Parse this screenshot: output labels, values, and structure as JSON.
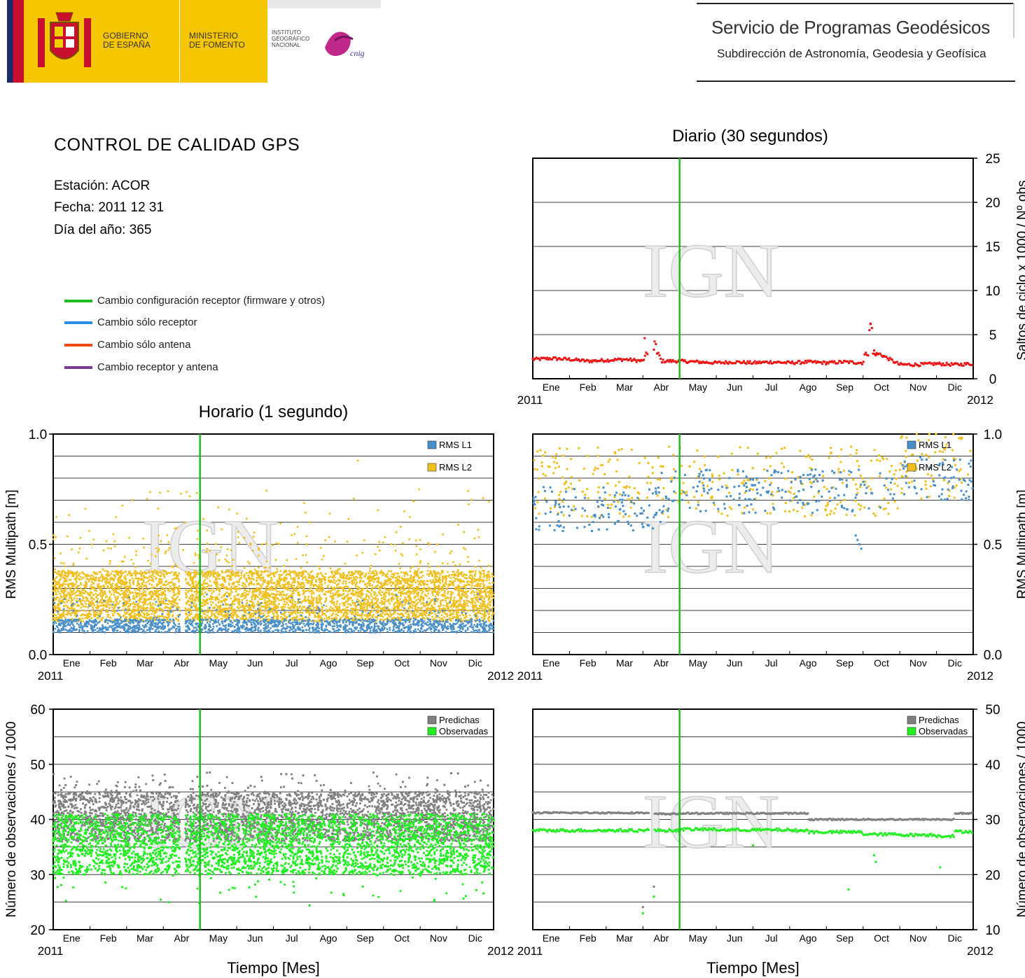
{
  "header": {
    "gov_label_1": "GOBIERNO",
    "gov_label_2": "DE ESPAÑA",
    "ministry_1": "MINISTERIO",
    "ministry_2": "DE FOMENTO",
    "ign_1": "INSTITUTO",
    "ign_2": "GEOGRÁFICO",
    "ign_3": "NACIONAL",
    "cnig_logo": "cnig",
    "service_title": "Servicio de Programas Geodésicos",
    "service_subtitle": "Subdirección de Astronomía, Geodesia y Geofísica"
  },
  "report": {
    "title": "CONTROL DE CALIDAD GPS",
    "station": "Estación: ACOR",
    "date": "Fecha: 2011 12 31",
    "doy": "Día del año: 365"
  },
  "legend": [
    {
      "label": "Cambio configuración receptor (firmware y otros)",
      "color": "#22bb22"
    },
    {
      "label": "Cambio sólo receptor",
      "color": "#2a8fe0"
    },
    {
      "label": "Cambio sólo antena",
      "color": "#f04a10"
    },
    {
      "label": "Cambio receptor y antena",
      "color": "#7a3a9a"
    }
  ],
  "colors": {
    "rms_l1": "#4a90c8",
    "rms_l2": "#f0c020",
    "predichas": "#808080",
    "observadas": "#22ee22",
    "cycle_slips": "#ee1111",
    "change_marker": "#22bb22"
  },
  "watermark": "IGN",
  "chart_data": [
    {
      "id": "daily_slips",
      "type": "scatter",
      "title": "Diario (30 segundos)",
      "ylabel": "Saltos de ciclo x 1000 / Nº obs.",
      "xlabel": "",
      "x_start": "2011",
      "x_end": "2012",
      "months": [
        "Ene",
        "Feb",
        "Mar",
        "Abr",
        "May",
        "Jun",
        "Jul",
        "Ago",
        "Sep",
        "Oct",
        "Nov",
        "Dic"
      ],
      "ylim": [
        0,
        25
      ],
      "yticks": [
        0,
        5,
        10,
        15,
        20,
        25
      ],
      "change_marker_month": 4.0,
      "series": [
        {
          "name": "",
          "base": 2.0,
          "x": [
            0.0,
            0.5,
            1.0,
            1.5,
            2.0,
            2.5,
            3.0,
            3.3,
            3.5,
            4.0,
            4.5,
            5.0,
            5.5,
            6.0,
            6.5,
            7.0,
            7.5,
            8.0,
            8.5,
            9.0,
            9.2,
            9.5,
            10.0,
            10.5,
            11.0,
            11.5,
            12.0
          ],
          "y": [
            2.2,
            2.3,
            2.2,
            2.0,
            2.1,
            2.2,
            2.0,
            4.6,
            2.0,
            2.0,
            1.9,
            1.8,
            1.9,
            1.8,
            1.9,
            1.8,
            1.9,
            1.8,
            1.9,
            1.8,
            6.2,
            2.7,
            1.6,
            1.6,
            1.7,
            1.6,
            1.7
          ]
        }
      ]
    },
    {
      "id": "hourly_rms",
      "type": "scatter",
      "title": "Horario (1 segundo)",
      "ylabel": "RMS Multipath [m]",
      "x_start": "2011",
      "x_end": "2012",
      "months": [
        "Ene",
        "Feb",
        "Mar",
        "Abr",
        "May",
        "Jun",
        "Jul",
        "Ago",
        "Sep",
        "Oct",
        "Nov",
        "Dic"
      ],
      "ylim": [
        0.0,
        1.0
      ],
      "ytick_labels": [
        "0.0",
        "0.5",
        "1.0"
      ],
      "change_marker_month": 4.0,
      "series": [
        {
          "name": "RMS L1",
          "band": [
            0.1,
            0.3
          ]
        },
        {
          "name": "RMS L2",
          "band": [
            0.15,
            0.38
          ],
          "outliers_max": 0.88
        }
      ]
    },
    {
      "id": "daily_rms",
      "type": "scatter",
      "title": "",
      "ylabel": "RMS Multipath [m]",
      "x_start": "2011",
      "x_end": "2012",
      "months": [
        "Ene",
        "Feb",
        "Mar",
        "Abr",
        "May",
        "Jun",
        "Jul",
        "Ago",
        "Sep",
        "Oct",
        "Nov",
        "Dic"
      ],
      "ylim": [
        0.0,
        1.0
      ],
      "ytick_labels": [
        "0.0",
        "0.5",
        "1.0"
      ],
      "change_marker_month": 4.0,
      "series": [
        {
          "name": "RMS L1",
          "band": [
            0.6,
            0.9
          ]
        },
        {
          "name": "RMS L2",
          "band": [
            0.68,
            1.0
          ]
        }
      ]
    },
    {
      "id": "hourly_obs",
      "type": "scatter",
      "ylabel": "Número de observaciones / 1000",
      "xlabel": "Tiempo [Mes]",
      "x_start": "2011",
      "x_end": "2012",
      "months": [
        "Ene",
        "Feb",
        "Mar",
        "Abr",
        "May",
        "Jun",
        "Jul",
        "Ago",
        "Sep",
        "Oct",
        "Nov",
        "Dic"
      ],
      "ylim": [
        20,
        60
      ],
      "yticks": [
        20,
        30,
        40,
        50,
        60
      ],
      "change_marker_month": 4.0,
      "series": [
        {
          "name": "Predichas",
          "band": [
            33,
            49
          ]
        },
        {
          "name": "Observadas",
          "band": [
            29,
            42
          ]
        }
      ]
    },
    {
      "id": "daily_obs",
      "type": "scatter",
      "ylabel": "Número de observaciones / 1000",
      "xlabel": "Tiempo [Mes]",
      "x_start": "2011",
      "x_end": "2012",
      "months": [
        "Ene",
        "Feb",
        "Mar",
        "Abr",
        "May",
        "Jun",
        "Jul",
        "Ago",
        "Sep",
        "Oct",
        "Nov",
        "Dic"
      ],
      "ylim": [
        10,
        50
      ],
      "yticks": [
        10,
        20,
        30,
        40,
        50
      ],
      "change_marker_month": 4.0,
      "series": [
        {
          "name": "Predichas",
          "x": [
            0,
            1,
            2,
            3,
            3.3,
            4,
            5,
            6,
            7,
            7.5,
            8,
            9,
            10,
            11,
            11.5
          ],
          "y": [
            31.2,
            31.2,
            31.2,
            31.1,
            31.0,
            31.1,
            31.1,
            31.1,
            31.1,
            30.0,
            30.0,
            30.0,
            30.0,
            30.0,
            31.1
          ]
        },
        {
          "name": "Observadas",
          "x": [
            0,
            1,
            2,
            3,
            3.3,
            4,
            5,
            6,
            7,
            7.5,
            8,
            9,
            10,
            11,
            11.5
          ],
          "y": [
            28.0,
            28.0,
            28.0,
            28.1,
            28.0,
            28.2,
            28.1,
            28.1,
            28.0,
            27.7,
            27.7,
            27.3,
            27.2,
            27.0,
            27.8
          ]
        }
      ]
    }
  ]
}
